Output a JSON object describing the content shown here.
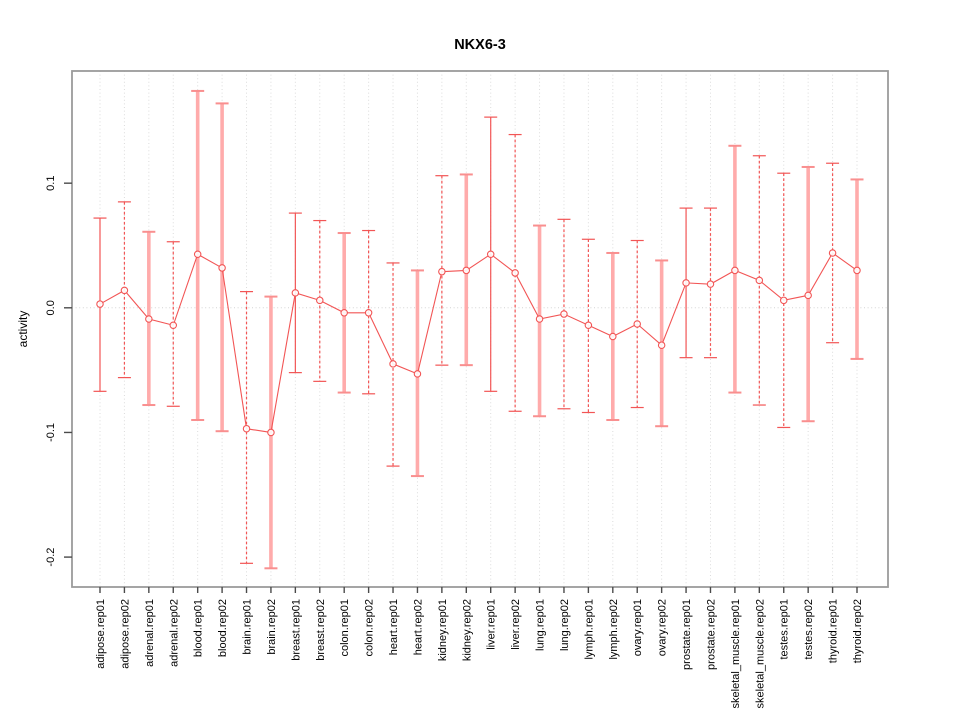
{
  "chart_data": {
    "type": "line",
    "title": "NKX6-3",
    "xlabel": "",
    "ylabel": "activity",
    "ylim": [
      -0.224,
      0.19
    ],
    "y_ticks": [
      0.1,
      0.0,
      -0.1,
      -0.2
    ],
    "y_tick_labels": [
      "0.1",
      "0.0",
      "-0.1",
      "-0.2"
    ],
    "grid": "vertical-dotted-per-category",
    "zero_line": "dotted",
    "legend": "none",
    "marker": "open-circle",
    "categories": [
      "adipose.rep01",
      "adipose.rep02",
      "adrenal.rep01",
      "adrenal.rep02",
      "blood.rep01",
      "blood.rep02",
      "brain.rep01",
      "brain.rep02",
      "breast.rep01",
      "breast.rep02",
      "colon.rep01",
      "colon.rep02",
      "heart.rep01",
      "heart.rep02",
      "kidney.rep01",
      "kidney.rep02",
      "liver.rep01",
      "liver.rep02",
      "lung.rep01",
      "lung.rep02",
      "lymph.rep01",
      "lymph.rep02",
      "ovary.rep01",
      "ovary.rep02",
      "prostate.rep01",
      "prostate.rep02",
      "skeletal_muscle.rep01",
      "skeletal_muscle.rep02",
      "testes.rep01",
      "testes.rep02",
      "thyroid.rep01",
      "thyroid.rep02"
    ],
    "series": [
      {
        "name": "activity",
        "values": [
          0.003,
          0.014,
          -0.009,
          -0.014,
          0.043,
          0.032,
          -0.097,
          -0.1,
          0.012,
          0.006,
          -0.004,
          -0.004,
          -0.045,
          -0.053,
          0.029,
          0.03,
          0.043,
          0.028,
          -0.009,
          -0.005,
          -0.014,
          -0.023,
          -0.013,
          -0.03,
          0.02,
          0.019,
          0.03,
          0.022,
          0.006,
          0.01,
          0.044,
          0.03
        ],
        "ci_high": [
          0.072,
          0.085,
          0.061,
          0.053,
          0.174,
          0.164,
          0.013,
          0.009,
          0.076,
          0.07,
          0.06,
          0.062,
          0.036,
          0.03,
          0.106,
          0.107,
          0.153,
          0.139,
          0.066,
          0.071,
          0.055,
          0.044,
          0.054,
          0.038,
          0.08,
          0.08,
          0.13,
          0.122,
          0.108,
          0.113,
          0.116,
          0.103
        ],
        "ci_low": [
          -0.067,
          -0.056,
          -0.078,
          -0.079,
          -0.09,
          -0.099,
          -0.205,
          -0.209,
          -0.052,
          -0.059,
          -0.068,
          -0.069,
          -0.127,
          -0.135,
          -0.046,
          -0.046,
          -0.067,
          -0.083,
          -0.087,
          -0.081,
          -0.084,
          -0.09,
          -0.08,
          -0.095,
          -0.04,
          -0.04,
          -0.068,
          -0.078,
          -0.096,
          -0.091,
          -0.028,
          -0.041
        ],
        "bar_styles": [
          "solid",
          "dashed",
          "thick",
          "dashed",
          "thick",
          "thick",
          "dashed",
          "thick",
          "solid",
          "dashed",
          "thick",
          "dashed",
          "dashed",
          "thick",
          "dashed",
          "thick",
          "solid",
          "dashed",
          "thick",
          "dashed",
          "dashed",
          "thick",
          "dashed",
          "thick",
          "solid",
          "dashed",
          "thick",
          "dashed",
          "dashed",
          "thick",
          "dashed",
          "thick"
        ]
      }
    ],
    "colors": {
      "line": "#f25555",
      "thick_bar": "#ffabab",
      "thick_cap": "#f98f8f",
      "grid": "#dcdcdc",
      "zero": "#d4d4d4",
      "box": "#9b9b9b",
      "tick": "#4a4a4a",
      "text": "#000000",
      "background": "#ffffff"
    }
  }
}
